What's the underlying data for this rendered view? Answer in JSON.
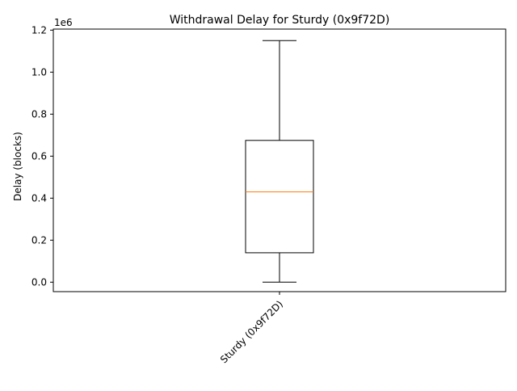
{
  "chart_data": {
    "type": "box",
    "title": "Withdrawal Delay for Sturdy (0x9f72D)",
    "xlabel": "",
    "ylabel": "Delay (blocks)",
    "offset_label": "1e6",
    "categories": [
      "Sturdy (0x9f72D)"
    ],
    "boxes": [
      {
        "category": "Sturdy (0x9f72D)",
        "whisker_low": 0,
        "q1": 140000,
        "median": 430000,
        "q3": 675000,
        "whisker_high": 1150000
      }
    ],
    "ylim": [
      -45000,
      1205000
    ],
    "yticks": [
      0,
      200000,
      400000,
      600000,
      800000,
      1000000,
      1200000
    ],
    "ytick_labels": [
      "0.0",
      "0.2",
      "0.4",
      "0.6",
      "0.8",
      "1.0",
      "1.2"
    ],
    "grid": false,
    "legend": "none",
    "colors": {
      "box": "#000000",
      "median": "#ff7f0e",
      "axes": "#000000"
    }
  }
}
